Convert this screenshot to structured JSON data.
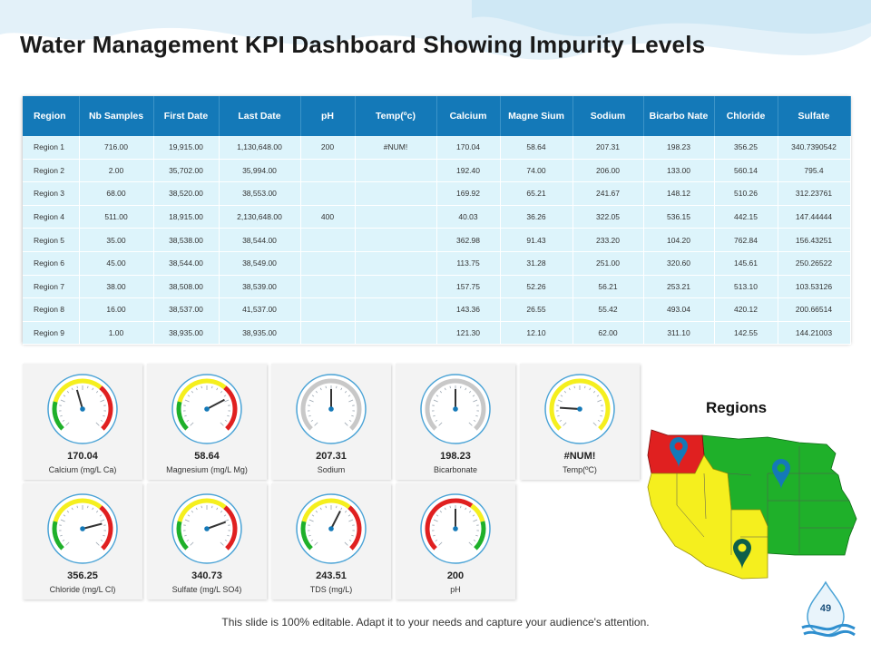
{
  "title": "Water Management KPI Dashboard Showing Impurity Levels",
  "table": {
    "headers": [
      "Region",
      "Nb Samples",
      "First Date",
      "Last Date",
      "pH",
      "Temp(ºc)",
      "Calcium",
      "Magne Sium",
      "Sodium",
      "Bicarbo Nate",
      "Chloride",
      "Sulfate"
    ],
    "rows": [
      [
        "Region 1",
        "716.00",
        "19,915.00",
        "1,130,648.00",
        "200",
        "#NUM!",
        "170.04",
        "58.64",
        "207.31",
        "198.23",
        "356.25",
        "340.7390542"
      ],
      [
        "Region 2",
        "2.00",
        "35,702.00",
        "35,994.00",
        "",
        "",
        "192.40",
        "74.00",
        "206.00",
        "133.00",
        "560.14",
        "795.4"
      ],
      [
        "Region 3",
        "68.00",
        "38,520.00",
        "38,553.00",
        "",
        "",
        "169.92",
        "65.21",
        "241.67",
        "148.12",
        "510.26",
        "312.23761"
      ],
      [
        "Region 4",
        "511.00",
        "18,915.00",
        "2,130,648.00",
        "400",
        "",
        "40.03",
        "36.26",
        "322.05",
        "536.15",
        "442.15",
        "147.44444"
      ],
      [
        "Region 5",
        "35.00",
        "38,538.00",
        "38,544.00",
        "",
        "",
        "362.98",
        "91.43",
        "233.20",
        "104.20",
        "762.84",
        "156.43251"
      ],
      [
        "Region 6",
        "45.00",
        "38,544.00",
        "38,549.00",
        "",
        "",
        "113.75",
        "31.28",
        "251.00",
        "320.60",
        "145.61",
        "250.26522"
      ],
      [
        "Region 7",
        "38.00",
        "38,508.00",
        "38,539.00",
        "",
        "",
        "157.75",
        "52.26",
        "56.21",
        "253.21",
        "513.10",
        "103.53126"
      ],
      [
        "Region 8",
        "16.00",
        "38,537.00",
        "41,537.00",
        "",
        "",
        "143.36",
        "26.55",
        "55.42",
        "493.04",
        "420.12",
        "200.66514"
      ],
      [
        "Region 9",
        "1.00",
        "38,935.00",
        "38,935.00",
        "",
        "",
        "121.30",
        "12.10",
        "62.00",
        "311.10",
        "142.55",
        "144.21003"
      ]
    ]
  },
  "gauges": [
    {
      "value": "170.04",
      "label": "Calcium (mg/L Ca)",
      "style": "tri",
      "needle": 0.44
    },
    {
      "value": "58.64",
      "label": "Magnesium (mg/L Mg)",
      "style": "tri",
      "needle": 0.73
    },
    {
      "value": "207.31",
      "label": "Sodium",
      "style": "gray",
      "needle": 0.5
    },
    {
      "value": "198.23",
      "label": "Bicarbonate",
      "style": "gray",
      "needle": 0.5
    },
    {
      "value": "#NUM!",
      "label": "Temp(ºC)",
      "style": "yellow",
      "needle": 0.18
    },
    {
      "value": "356.25",
      "label": "Chloride (mg/L Cl)",
      "style": "tri",
      "needle": 0.78
    },
    {
      "value": "340.73",
      "label": "Sulfate (mg/L SO4)",
      "style": "tri",
      "needle": 0.76
    },
    {
      "value": "243.51",
      "label": "TDS (mg/L)",
      "style": "tri",
      "needle": 0.6
    },
    {
      "value": "200",
      "label": "pH",
      "style": "rev",
      "needle": 0.5
    }
  ],
  "regions": {
    "title": "Regions"
  },
  "colors": {
    "header": "#1479b8",
    "row": "#ddf4fb",
    "red": "#e02020",
    "yellow": "#f5ef1e",
    "green": "#1fb02a"
  },
  "page_number": "49",
  "footer": "This slide is 100% editable. Adapt it to your needs and capture your audience's attention."
}
